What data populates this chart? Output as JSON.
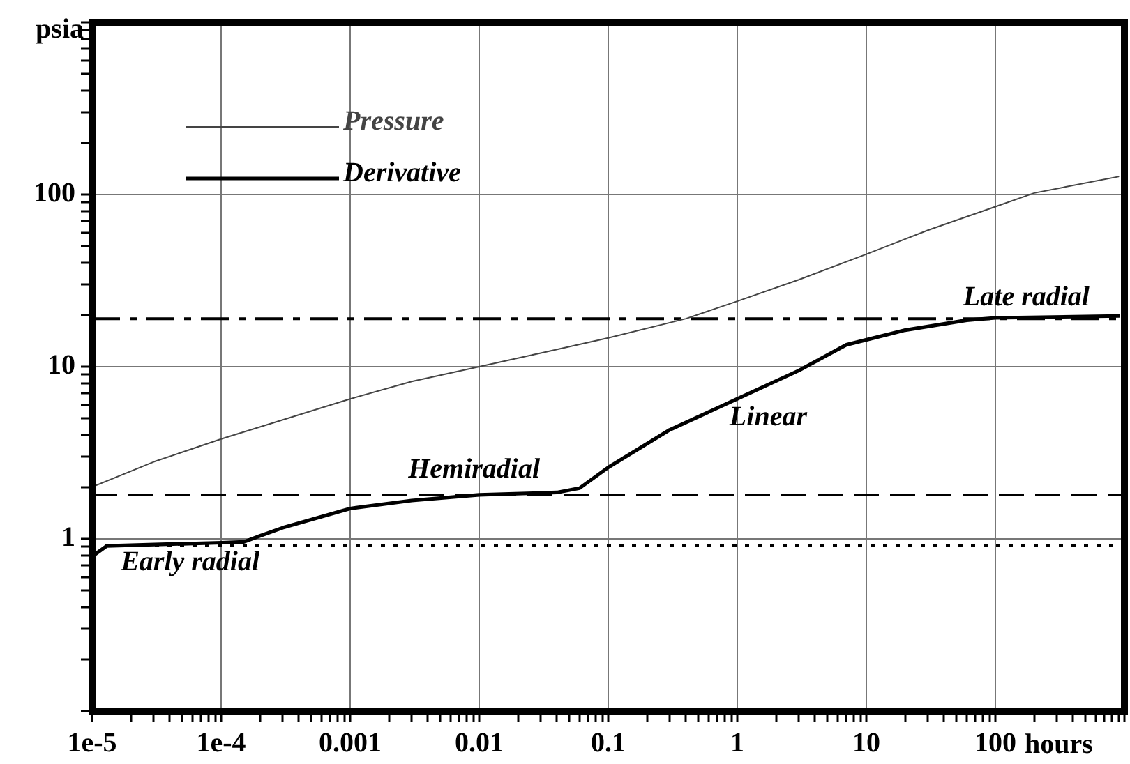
{
  "chart_data": {
    "type": "line",
    "xlabel": "hours",
    "ylabel": "psia",
    "x": [
      1e-05,
      3e-05,
      0.0001,
      0.001,
      0.003,
      0.01,
      0.03,
      0.1,
      0.4,
      1,
      3,
      10,
      30,
      100,
      200,
      900
    ],
    "series": [
      {
        "name": "Pressure",
        "color": "#444444",
        "values": [
          2.0,
          2.8,
          3.8,
          6.5,
          8.2,
          10,
          12,
          14.7,
          19,
          24,
          32,
          45,
          62,
          85,
          102,
          127
        ]
      },
      {
        "name": "Derivative",
        "color": "#000000",
        "x": [
          1e-05,
          1.3e-05,
          0.0001,
          0.00015,
          0.0002,
          0.0003,
          0.001,
          0.003,
          0.01,
          0.04,
          0.06,
          0.1,
          0.3,
          1,
          3,
          7,
          20,
          60,
          100,
          900
        ],
        "values": [
          0.79,
          0.91,
          0.95,
          0.96,
          1.04,
          1.16,
          1.5,
          1.67,
          1.8,
          1.86,
          1.97,
          2.6,
          4.3,
          6.5,
          9.5,
          13.4,
          16.3,
          18.6,
          19.2,
          19.7
        ]
      }
    ],
    "log": "xy",
    "xlim": [
      1e-05,
      1000
    ],
    "ylim": [
      0.1,
      1000
    ],
    "xticks": [
      {
        "value": 1e-05,
        "label": "1e-5"
      },
      {
        "value": 2e-05,
        "label": null
      },
      {
        "value": 3e-05,
        "label": null
      },
      {
        "value": 4e-05,
        "label": null
      },
      {
        "value": 5e-05,
        "label": null
      },
      {
        "value": 6e-05,
        "label": null
      },
      {
        "value": 7e-05,
        "label": null
      },
      {
        "value": 8e-05,
        "label": null
      },
      {
        "value": 9e-05,
        "label": null
      },
      {
        "value": 0.0001,
        "label": "1e-4"
      },
      {
        "value": 0.0002,
        "label": null
      },
      {
        "value": 0.0003,
        "label": null
      },
      {
        "value": 0.0004,
        "label": null
      },
      {
        "value": 0.0005,
        "label": null
      },
      {
        "value": 0.0006,
        "label": null
      },
      {
        "value": 0.0007,
        "label": null
      },
      {
        "value": 0.0008,
        "label": null
      },
      {
        "value": 0.0009,
        "label": null
      },
      0.001,
      {
        "value": 0.002,
        "label": null
      },
      {
        "value": 0.003,
        "label": null
      },
      {
        "value": 0.004,
        "label": null
      },
      {
        "value": 0.005,
        "label": null
      },
      {
        "value": 0.006,
        "label": null
      },
      {
        "value": 0.007,
        "label": null
      },
      {
        "value": 0.008,
        "label": null
      },
      {
        "value": 0.009,
        "label": null
      },
      0.01,
      {
        "value": 0.02,
        "label": null
      },
      {
        "value": 0.03,
        "label": null
      },
      {
        "value": 0.04,
        "label": null
      },
      {
        "value": 0.05,
        "label": null
      },
      {
        "value": 0.06,
        "label": null
      },
      {
        "value": 0.07,
        "label": null
      },
      {
        "value": 0.08,
        "label": null
      },
      {
        "value": 0.09,
        "label": null
      },
      0.1,
      {
        "value": 0.2,
        "label": null
      },
      {
        "value": 0.3,
        "label": null
      },
      {
        "value": 0.4,
        "label": null
      },
      {
        "value": 0.5,
        "label": null
      },
      {
        "value": 0.6,
        "label": null
      },
      {
        "value": 0.7,
        "label": null
      },
      {
        "value": 0.8,
        "label": null
      },
      {
        "value": 0.9,
        "label": null
      },
      1,
      {
        "value": 2,
        "label": null
      },
      {
        "value": 3,
        "label": null
      },
      {
        "value": 4,
        "label": null
      },
      {
        "value": 5,
        "label": null
      },
      {
        "value": 6,
        "label": null
      },
      {
        "value": 7,
        "label": null
      },
      {
        "value": 8,
        "label": null
      },
      {
        "value": 9,
        "label": null
      },
      10,
      {
        "value": 20,
        "label": null
      },
      {
        "value": 30,
        "label": null
      },
      {
        "value": 40,
        "label": null
      },
      {
        "value": 50,
        "label": null
      },
      {
        "value": 60,
        "label": null
      },
      {
        "value": 70,
        "label": null
      },
      {
        "value": 80,
        "label": null
      },
      {
        "value": 90,
        "label": null
      },
      100,
      {
        "value": 200,
        "label": null
      },
      {
        "value": 300,
        "label": null
      },
      {
        "value": 400,
        "label": null
      },
      {
        "value": 500,
        "label": null
      },
      {
        "value": 600,
        "label": null
      },
      {
        "value": 700,
        "label": null
      },
      {
        "value": 800,
        "label": null
      },
      {
        "value": 900,
        "label": null
      },
      {
        "value": 1000,
        "label": null
      }
    ],
    "yticks": [
      {
        "value": 0.1,
        "label": null
      },
      {
        "value": 0.2,
        "label": null
      },
      {
        "value": 0.3,
        "label": null
      },
      {
        "value": 0.4,
        "label": null
      },
      {
        "value": 0.5,
        "label": null
      },
      {
        "value": 0.6,
        "label": null
      },
      {
        "value": 0.7,
        "label": null
      },
      {
        "value": 0.8,
        "label": null
      },
      {
        "value": 0.9,
        "label": null
      },
      1,
      {
        "value": 2,
        "label": null
      },
      {
        "value": 3,
        "label": null
      },
      {
        "value": 4,
        "label": null
      },
      {
        "value": 5,
        "label": null
      },
      {
        "value": 6,
        "label": null
      },
      {
        "value": 7,
        "label": null
      },
      {
        "value": 8,
        "label": null
      },
      {
        "value": 9,
        "label": null
      },
      10,
      {
        "value": 20,
        "label": null
      },
      {
        "value": 30,
        "label": null
      },
      {
        "value": 40,
        "label": null
      },
      {
        "value": 50,
        "label": null
      },
      {
        "value": 60,
        "label": null
      },
      {
        "value": 70,
        "label": null
      },
      {
        "value": 80,
        "label": null
      },
      {
        "value": 90,
        "label": null
      },
      100,
      {
        "value": 200,
        "label": null
      },
      {
        "value": 300,
        "label": null
      },
      {
        "value": 400,
        "label": null
      },
      {
        "value": 500,
        "label": null
      },
      {
        "value": 600,
        "label": null
      },
      {
        "value": 700,
        "label": null
      },
      {
        "value": 800,
        "label": null
      },
      {
        "value": 900,
        "label": null
      },
      {
        "value": 1000,
        "label": null
      }
    ],
    "grid": true,
    "legend": "top left",
    "marker": "none",
    "ref_lines": [
      {
        "axis": "y",
        "value": 19,
        "color": "#000000",
        "line_style": "dashdot"
      },
      {
        "axis": "y",
        "value": 1.8,
        "color": "#000000",
        "line_style": "dashed"
      },
      {
        "axis": "y",
        "value": 0.92,
        "color": "#000000",
        "line_style": "dotted"
      }
    ],
    "annotations": [
      "Early radial",
      "Hemiradial",
      "Linear",
      "Late radial"
    ]
  }
}
